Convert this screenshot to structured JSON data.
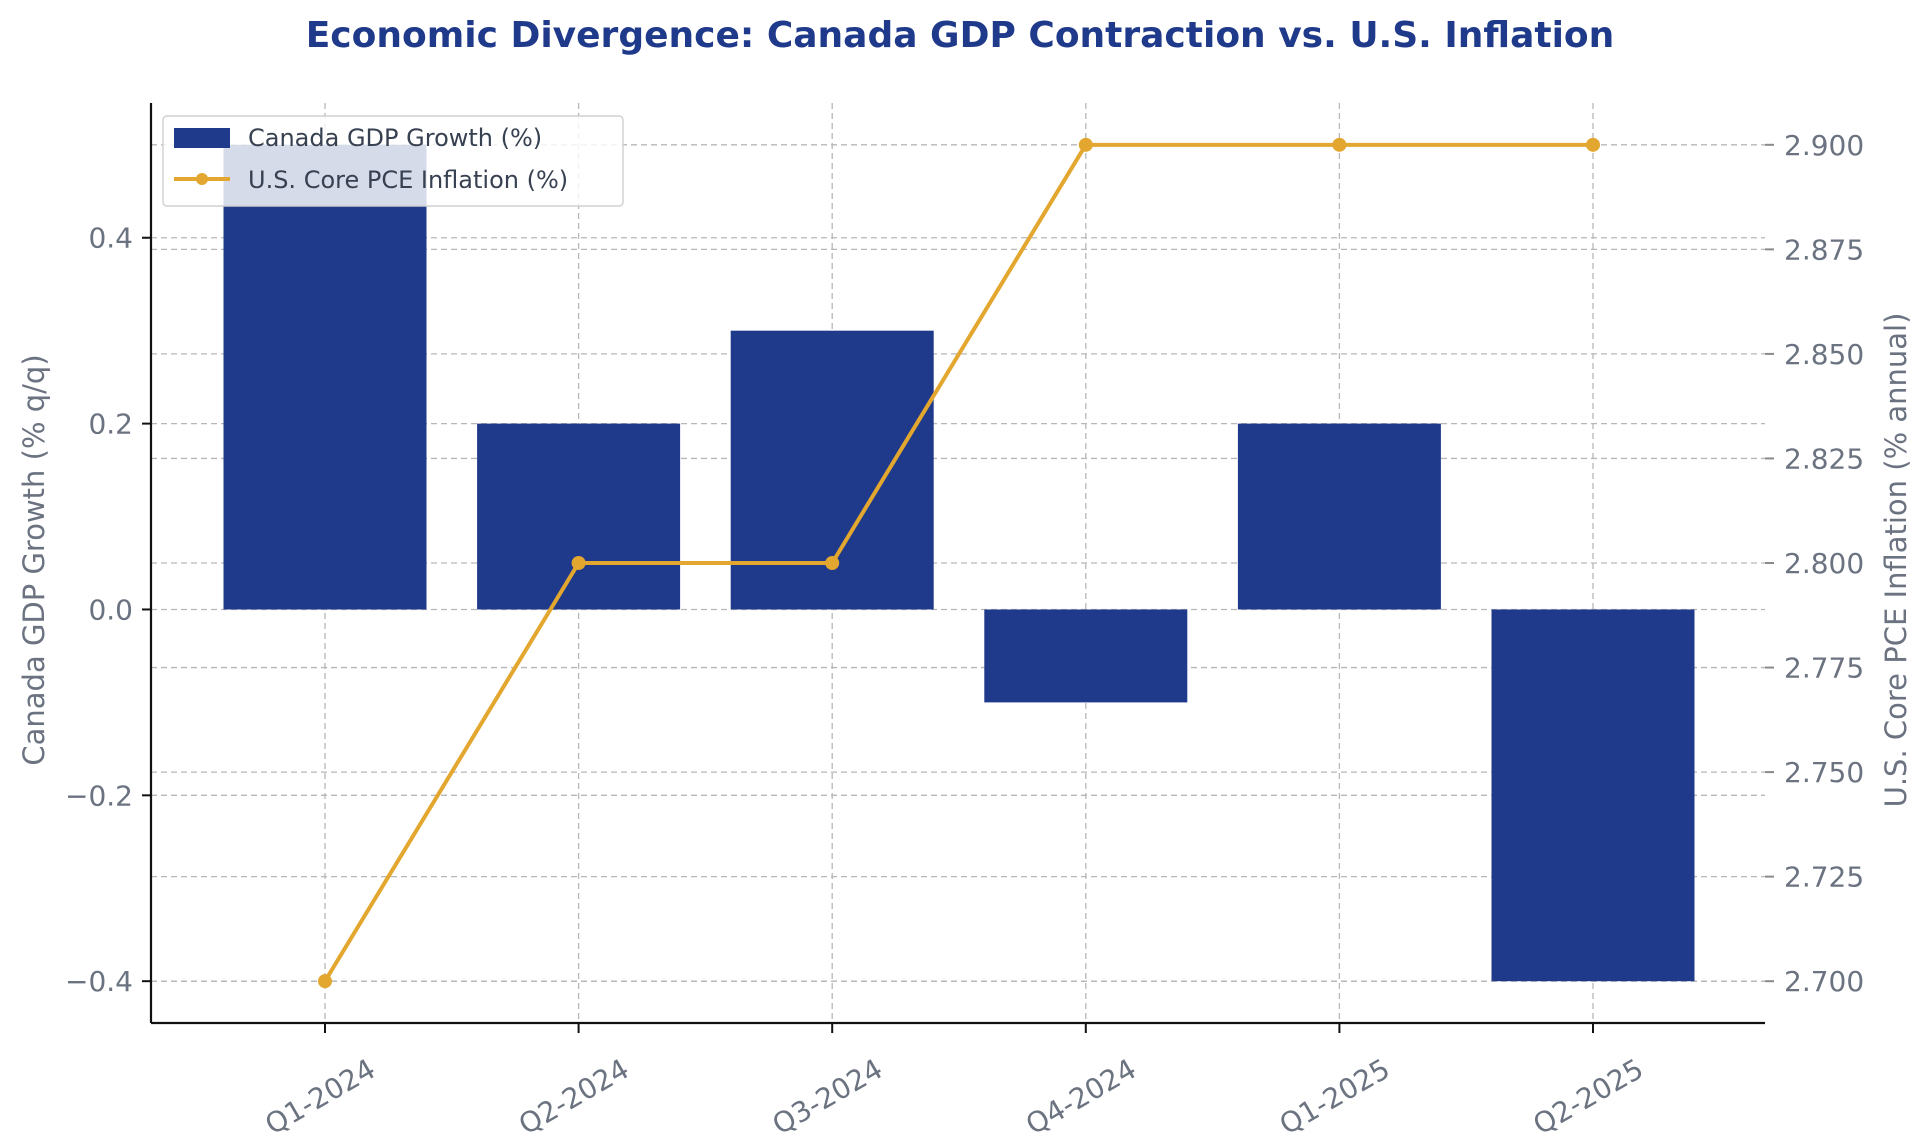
{
  "chart_data": {
    "type": "bar",
    "title": "Economic Divergence: Canada GDP Contraction vs. U.S. Inflation",
    "categories": [
      "Q1-2024",
      "Q2-2024",
      "Q3-2024",
      "Q4-2024",
      "Q1-2025",
      "Q2-2025"
    ],
    "series": [
      {
        "name": "Canada GDP Growth (%)",
        "type": "bar",
        "axis": "left",
        "color": "#1f3a8a",
        "values": [
          0.5,
          0.2,
          0.3,
          -0.1,
          0.2,
          -0.4
        ]
      },
      {
        "name": "U.S. Core PCE Inflation (%)",
        "type": "line",
        "axis": "right",
        "color": "#e3a72f",
        "values": [
          2.7,
          2.8,
          2.8,
          2.9,
          2.9,
          2.9
        ]
      }
    ],
    "ylabel_left": "Canada GDP Growth (% q/q)",
    "ylabel_right": "U.S. Core PCE Inflation (% annual)",
    "yticks_left": [
      "0.4",
      "0.2",
      "0.0",
      "−0.2",
      "−0.4"
    ],
    "ytick_values_left": [
      0.4,
      0.2,
      0.0,
      -0.2,
      -0.4
    ],
    "ylim_left": [
      -0.445,
      0.545
    ],
    "yticks_right": [
      "2.900",
      "2.875",
      "2.850",
      "2.825",
      "2.800",
      "2.775",
      "2.750",
      "2.725",
      "2.700"
    ],
    "ytick_values_right": [
      2.9,
      2.875,
      2.85,
      2.825,
      2.8,
      2.775,
      2.75,
      2.725,
      2.7
    ],
    "ylim_right": [
      2.69,
      2.91
    ],
    "grid": true,
    "legend_position": "top-left"
  }
}
